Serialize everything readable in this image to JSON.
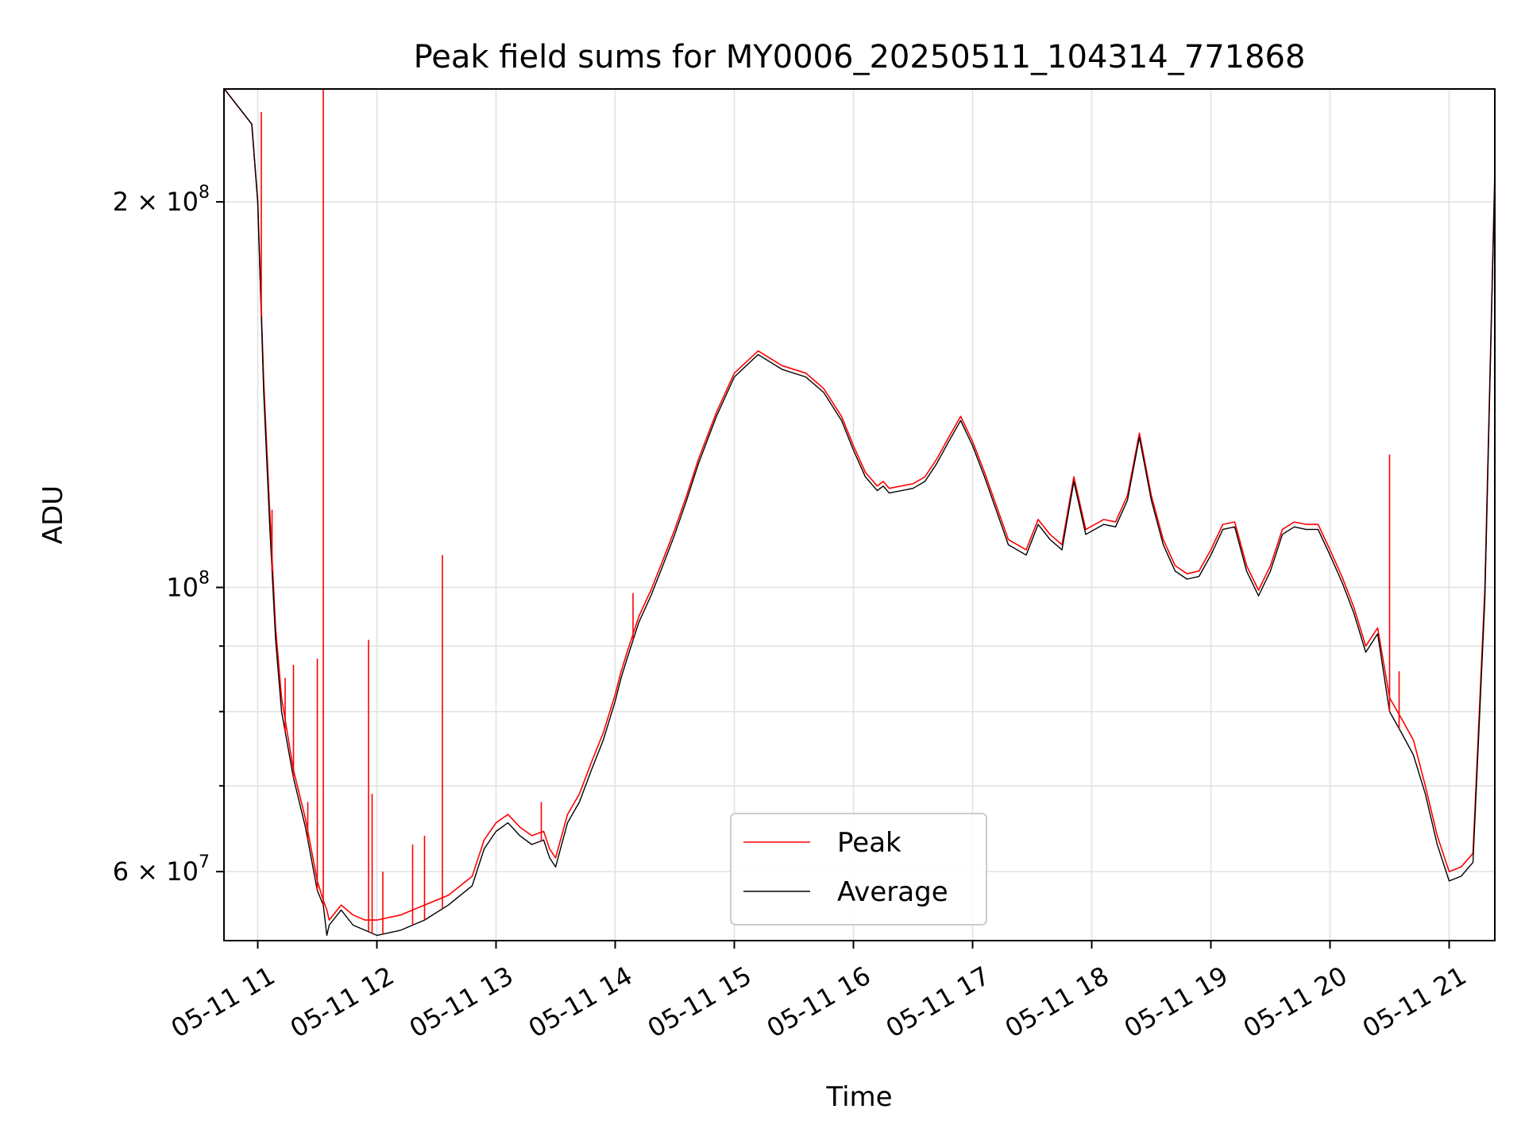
{
  "chart_data": {
    "type": "line",
    "title": "Peak field sums for MY0006_20250511_104314_771868",
    "xlabel": "Time",
    "ylabel": "ADU",
    "yscale": "log",
    "ylim": [
      53000000,
      245000000
    ],
    "xlim": [
      "05-11 10:43",
      "05-11 21:23"
    ],
    "grid": true,
    "legend_position": "lower-center",
    "x_ticks": [
      "05-11 11",
      "05-11 12",
      "05-11 13",
      "05-11 14",
      "05-11 15",
      "05-11 16",
      "05-11 17",
      "05-11 18",
      "05-11 19",
      "05-11 20",
      "05-11 21"
    ],
    "x_tick_hours": [
      11,
      12,
      13,
      14,
      15,
      16,
      17,
      18,
      19,
      20,
      21
    ],
    "y_ticks_labeled": [
      {
        "value": 200000000,
        "base": "2 × 10",
        "exp": "8"
      },
      {
        "value": 100000000,
        "base": "10",
        "exp": "8"
      },
      {
        "value": 60000000,
        "base": "6 × 10",
        "exp": "7"
      }
    ],
    "y_ticks_minor": [
      70000000,
      80000000,
      90000000
    ],
    "series": [
      {
        "name": "Peak",
        "color": "#ff0000",
        "x_hours": [
          10.72,
          10.95,
          11.0,
          11.05,
          11.1,
          11.15,
          11.2,
          11.3,
          11.4,
          11.5,
          11.55,
          11.58,
          11.6,
          11.7,
          11.8,
          11.9,
          12.0,
          12.2,
          12.4,
          12.6,
          12.8,
          12.9,
          13.0,
          13.1,
          13.2,
          13.3,
          13.4,
          13.45,
          13.5,
          13.6,
          13.7,
          13.8,
          13.9,
          14.0,
          14.05,
          14.1,
          14.2,
          14.3,
          14.4,
          14.5,
          14.6,
          14.7,
          14.85,
          15.0,
          15.2,
          15.4,
          15.6,
          15.75,
          15.9,
          16.0,
          16.1,
          16.2,
          16.25,
          16.3,
          16.5,
          16.6,
          16.7,
          16.8,
          16.9,
          17.0,
          17.1,
          17.3,
          17.45,
          17.55,
          17.65,
          17.75,
          17.85,
          17.95,
          18.1,
          18.2,
          18.3,
          18.4,
          18.5,
          18.6,
          18.7,
          18.8,
          18.9,
          19.0,
          19.1,
          19.2,
          19.3,
          19.4,
          19.5,
          19.6,
          19.7,
          19.8,
          19.9,
          20.0,
          20.1,
          20.2,
          20.3,
          20.4,
          20.5,
          20.6,
          20.7,
          20.8,
          20.9,
          21.0,
          21.1,
          21.2,
          21.3,
          21.4
        ],
        "values": [
          245000000,
          230000000,
          200000000,
          145000000,
          115000000,
          93000000,
          82000000,
          72000000,
          66000000,
          59000000,
          57000000,
          56000000,
          55000000,
          56500000,
          55500000,
          55000000,
          55000000,
          55500000,
          56500000,
          57500000,
          59500000,
          63500000,
          65500000,
          66500000,
          65000000,
          64000000,
          64500000,
          62500000,
          61500000,
          66500000,
          69000000,
          73000000,
          77000000,
          82500000,
          86000000,
          89000000,
          95000000,
          99500000,
          105000000,
          111000000,
          118000000,
          126000000,
          137000000,
          147000000,
          153000000,
          149000000,
          147000000,
          143000000,
          136000000,
          129000000,
          123000000,
          120000000,
          121000000,
          119500000,
          120500000,
          122000000,
          126000000,
          131000000,
          136000000,
          130000000,
          123000000,
          109000000,
          107000000,
          113000000,
          110000000,
          108000000,
          122000000,
          111000000,
          113000000,
          112500000,
          118000000,
          132000000,
          118000000,
          109000000,
          104000000,
          102500000,
          103000000,
          107000000,
          112000000,
          112500000,
          104000000,
          99500000,
          104000000,
          111000000,
          112500000,
          112000000,
          112000000,
          107000000,
          102000000,
          96500000,
          90000000,
          93000000,
          82000000,
          79000000,
          76000000,
          70000000,
          64000000,
          60000000,
          60500000,
          62000000,
          100000000,
          245000000
        ]
      },
      {
        "name": "Average",
        "color": "#000000",
        "x_hours": [
          10.72,
          10.95,
          11.0,
          11.05,
          11.1,
          11.15,
          11.2,
          11.3,
          11.4,
          11.5,
          11.55,
          11.58,
          11.6,
          11.7,
          11.8,
          11.9,
          12.0,
          12.2,
          12.4,
          12.6,
          12.8,
          12.9,
          13.0,
          13.1,
          13.2,
          13.3,
          13.4,
          13.45,
          13.5,
          13.6,
          13.7,
          13.8,
          13.9,
          14.0,
          14.05,
          14.1,
          14.2,
          14.3,
          14.4,
          14.5,
          14.6,
          14.7,
          14.85,
          15.0,
          15.2,
          15.4,
          15.6,
          15.75,
          15.9,
          16.0,
          16.1,
          16.2,
          16.25,
          16.3,
          16.5,
          16.6,
          16.7,
          16.8,
          16.9,
          17.0,
          17.1,
          17.3,
          17.45,
          17.55,
          17.65,
          17.75,
          17.85,
          17.95,
          18.1,
          18.2,
          18.3,
          18.4,
          18.5,
          18.6,
          18.7,
          18.8,
          18.9,
          19.0,
          19.1,
          19.2,
          19.3,
          19.4,
          19.5,
          19.6,
          19.7,
          19.8,
          19.9,
          20.0,
          20.1,
          20.2,
          20.3,
          20.4,
          20.5,
          20.6,
          20.7,
          20.8,
          20.9,
          21.0,
          21.1,
          21.2,
          21.3,
          21.4
        ],
        "values": [
          245000000,
          230000000,
          200000000,
          142000000,
          112000000,
          91000000,
          80000000,
          71000000,
          65000000,
          58000000,
          56500000,
          53500000,
          54500000,
          56000000,
          54500000,
          54000000,
          53500000,
          54000000,
          55000000,
          56500000,
          58500000,
          62500000,
          64500000,
          65500000,
          64000000,
          63000000,
          63500000,
          61500000,
          60500000,
          65500000,
          68000000,
          72000000,
          76000000,
          81500000,
          85000000,
          88000000,
          94000000,
          98500000,
          104000000,
          110000000,
          117000000,
          125000000,
          136000000,
          146000000,
          152000000,
          148000000,
          146000000,
          142000000,
          135000000,
          128000000,
          122000000,
          119000000,
          120000000,
          118500000,
          119500000,
          121000000,
          125000000,
          130000000,
          135000000,
          129000000,
          122000000,
          108000000,
          106000000,
          112000000,
          109000000,
          107000000,
          121000000,
          110000000,
          112000000,
          111500000,
          117000000,
          131000000,
          117000000,
          108000000,
          103000000,
          101500000,
          102000000,
          106000000,
          111000000,
          111500000,
          103000000,
          98500000,
          103000000,
          110000000,
          111500000,
          111000000,
          111000000,
          106000000,
          101000000,
          95500000,
          89000000,
          92000000,
          80000000,
          77000000,
          74000000,
          69000000,
          63000000,
          59000000,
          59500000,
          61000000,
          98000000,
          245000000
        ]
      }
    ],
    "peak_spikes": [
      {
        "x_hours": 11.03,
        "value": 235000000
      },
      {
        "x_hours": 11.12,
        "value": 115000000
      },
      {
        "x_hours": 11.23,
        "value": 85000000
      },
      {
        "x_hours": 11.3,
        "value": 87000000
      },
      {
        "x_hours": 11.42,
        "value": 68000000
      },
      {
        "x_hours": 11.5,
        "value": 88000000
      },
      {
        "x_hours": 11.55,
        "value": 245000000
      },
      {
        "x_hours": 11.93,
        "value": 91000000
      },
      {
        "x_hours": 11.96,
        "value": 69000000
      },
      {
        "x_hours": 12.05,
        "value": 60000000
      },
      {
        "x_hours": 12.3,
        "value": 63000000
      },
      {
        "x_hours": 12.4,
        "value": 64000000
      },
      {
        "x_hours": 12.55,
        "value": 106000000
      },
      {
        "x_hours": 13.38,
        "value": 68000000
      },
      {
        "x_hours": 14.15,
        "value": 99000000
      },
      {
        "x_hours": 20.5,
        "value": 127000000
      },
      {
        "x_hours": 20.58,
        "value": 86000000
      }
    ]
  }
}
